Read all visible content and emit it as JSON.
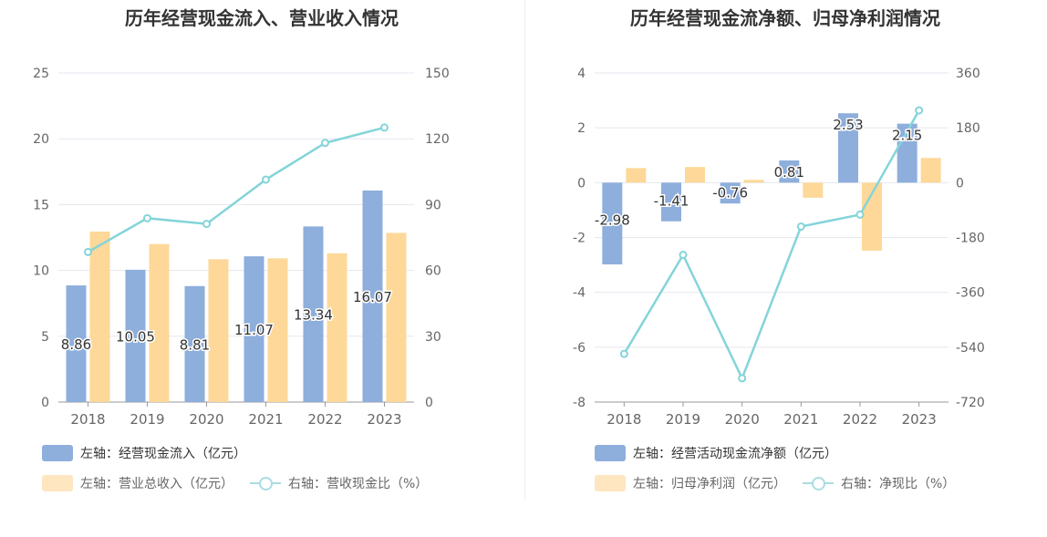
{
  "colors": {
    "bar1": "#8eaedc",
    "bar2": "#fdd899",
    "line": "#84d4d9",
    "grid": "#e6e8ef",
    "axis_text": "#666666",
    "label_text": "#333333"
  },
  "chart_data": [
    {
      "type": "bar",
      "title": "历年经营现金流入、营业收入情况",
      "categories": [
        "2018",
        "2019",
        "2020",
        "2021",
        "2022",
        "2023"
      ],
      "y_left": {
        "min": 0,
        "max": 25,
        "ticks": [
          "0",
          "5",
          "10",
          "15",
          "20",
          "25"
        ]
      },
      "y_right": {
        "min": 0,
        "max": 150,
        "ticks": [
          "0",
          "30",
          "60",
          "90",
          "120",
          "150"
        ]
      },
      "series": [
        {
          "name": "左轴：经营现金流入（亿元）",
          "type": "bar",
          "axis": "left",
          "values": [
            8.86,
            10.05,
            8.81,
            11.07,
            13.34,
            16.07
          ],
          "labels": [
            "8.86",
            "10.05",
            "8.81",
            "11.07",
            "13.34",
            "16.07"
          ]
        },
        {
          "name": "左轴：营业总收入（亿元）",
          "type": "bar",
          "axis": "left",
          "values": [
            12.95,
            12.0,
            10.85,
            10.92,
            11.3,
            12.85
          ]
        },
        {
          "name": "右轴：营收现金比（%）",
          "type": "line",
          "axis": "right",
          "values": [
            68.4,
            83.8,
            81.2,
            101.4,
            118.1,
            125.1
          ]
        }
      ]
    },
    {
      "type": "bar",
      "title": "历年经营现金流净额、归母净利润情况",
      "categories": [
        "2018",
        "2019",
        "2020",
        "2021",
        "2022",
        "2023"
      ],
      "y_left": {
        "min": -8,
        "max": 4,
        "ticks": [
          "-8",
          "-6",
          "-4",
          "-2",
          "0",
          "2",
          "4"
        ]
      },
      "y_right": {
        "min": -720,
        "max": 360,
        "ticks": [
          "-720",
          "-540",
          "-360",
          "-180",
          "0",
          "180",
          "360"
        ]
      },
      "series": [
        {
          "name": "左轴：经营活动现金流净额（亿元）",
          "type": "bar",
          "axis": "left",
          "values": [
            -2.98,
            -1.41,
            -0.76,
            0.81,
            2.53,
            2.15
          ],
          "labels": [
            "-2.98",
            "-1.41",
            "-0.76",
            "0.81",
            "2.53",
            "2.15"
          ]
        },
        {
          "name": "左轴：归母净利润（亿元）",
          "type": "bar",
          "axis": "left",
          "values": [
            0.53,
            0.57,
            0.1,
            -0.55,
            -2.48,
            0.9
          ]
        },
        {
          "name": "右轴：净现比（%）",
          "type": "line",
          "axis": "right",
          "values": [
            -562,
            -237,
            -642,
            -144,
            -105,
            237
          ]
        }
      ]
    }
  ]
}
